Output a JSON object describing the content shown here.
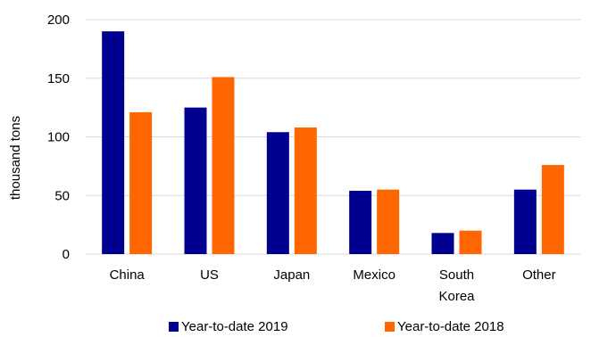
{
  "chart_data": {
    "type": "bar",
    "title": "",
    "xlabel": "",
    "ylabel": "thousand tons",
    "ylim": [
      0,
      200
    ],
    "yticks": [
      0,
      50,
      100,
      150,
      200
    ],
    "grid": "horizontal",
    "legend_position": "bottom",
    "categories": [
      [
        "China"
      ],
      [
        "US"
      ],
      [
        "Japan"
      ],
      [
        "Mexico"
      ],
      [
        "South",
        "Korea"
      ],
      [
        "Other"
      ]
    ],
    "series": [
      {
        "name": "Year-to-date 2019",
        "color": "#000090",
        "values": [
          190,
          125,
          104,
          54,
          18,
          55
        ]
      },
      {
        "name": "Year-to-date 2018",
        "color": "#ff6600",
        "values": [
          121,
          151,
          108,
          55,
          20,
          76
        ]
      }
    ]
  }
}
